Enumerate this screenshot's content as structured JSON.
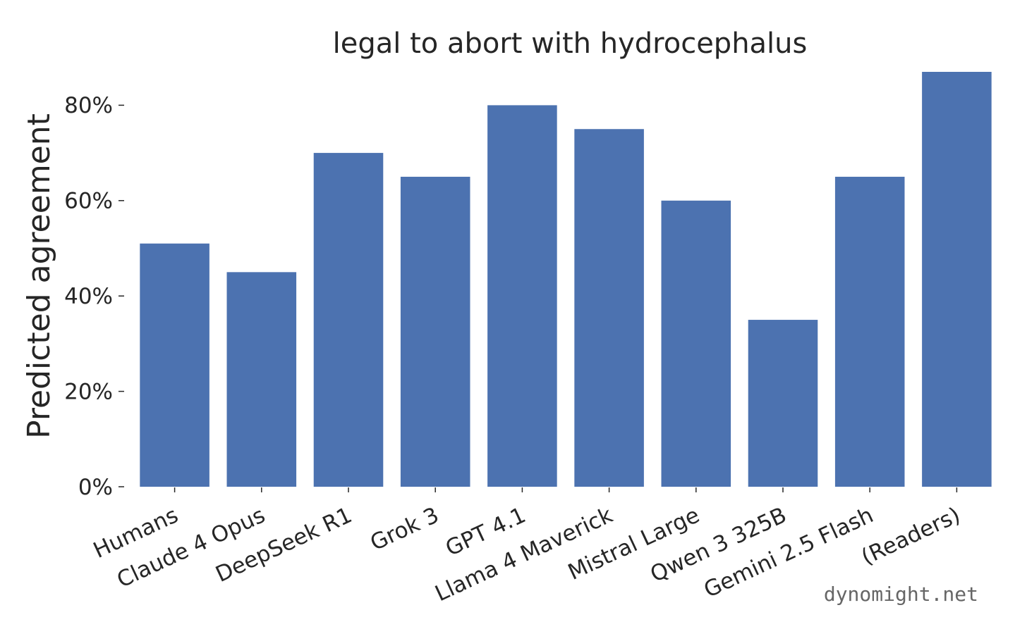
{
  "chart_data": {
    "type": "bar",
    "title": "legal to abort with hydrocephalus",
    "xlabel": "",
    "ylabel": "Predicted agreement",
    "categories": [
      "Humans",
      "Claude 4 Opus",
      "DeepSeek R1",
      "Grok 3",
      "GPT 4.1",
      "Llama 4 Maverick",
      "Mistral Large",
      "Qwen 3 325B",
      "Gemini 2.5 Flash",
      "(Readers)"
    ],
    "values": [
      51,
      45,
      70,
      65,
      80,
      75,
      60,
      35,
      65,
      87
    ],
    "ylim": [
      0,
      87
    ],
    "yticks": [
      0,
      20,
      40,
      60,
      80
    ],
    "ytick_labels": [
      "0%",
      "20%",
      "40%",
      "60%",
      "80%"
    ],
    "grid": false,
    "bar_color": "#4c72b0"
  },
  "watermark": "dynomight.net"
}
